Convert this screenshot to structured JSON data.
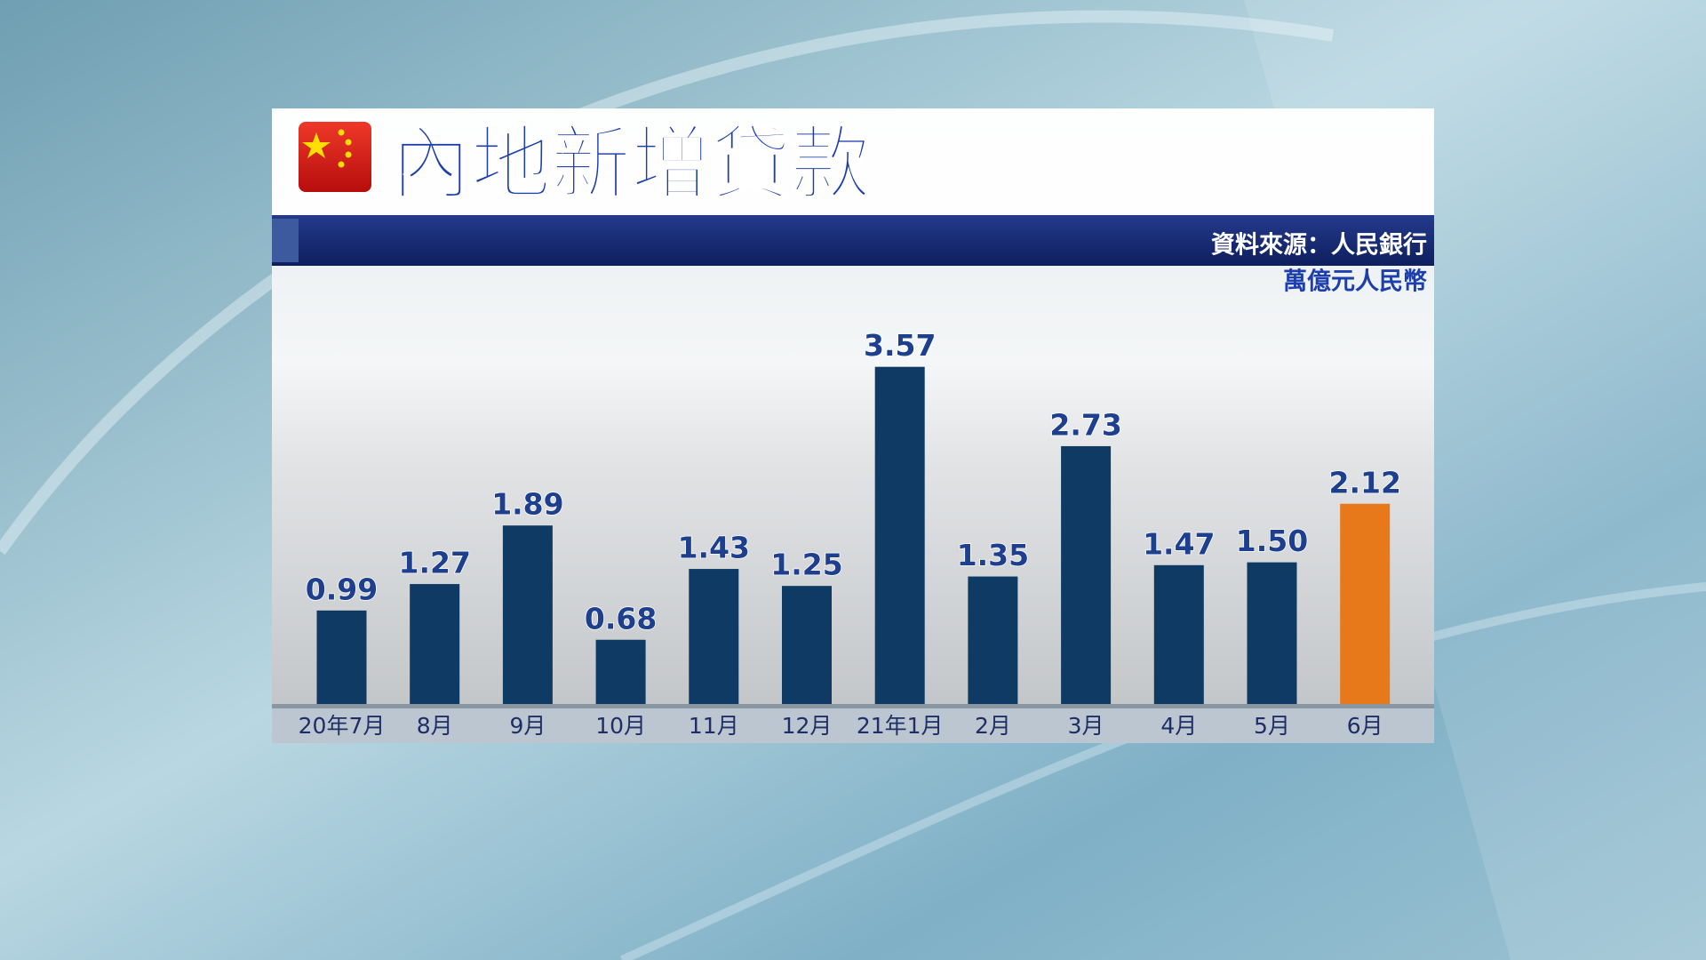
{
  "chart_data": {
    "type": "bar",
    "title": "內地新增貸款",
    "source": "資料來源：人民銀行",
    "unit": "萬億元人民幣",
    "categories": [
      "20年7月",
      "8月",
      "9月",
      "10月",
      "11月",
      "12月",
      "21年1月",
      "2月",
      "3月",
      "4月",
      "5月",
      "6月"
    ],
    "values": [
      0.99,
      1.27,
      1.89,
      0.68,
      1.43,
      1.25,
      3.57,
      1.35,
      2.73,
      1.47,
      1.5,
      2.12
    ],
    "value_labels": [
      "0.99",
      "1.27",
      "1.89",
      "0.68",
      "1.43",
      "1.25",
      "3.57",
      "1.35",
      "2.73",
      "1.47",
      "1.50",
      "2.12"
    ],
    "colors": [
      "#0f3a63",
      "#0f3a63",
      "#0f3a63",
      "#0f3a63",
      "#0f3a63",
      "#0f3a63",
      "#0f3a63",
      "#0f3a63",
      "#0f3a63",
      "#0f3a63",
      "#0f3a63",
      "#e8791a"
    ],
    "ylim": [
      0,
      4
    ]
  }
}
